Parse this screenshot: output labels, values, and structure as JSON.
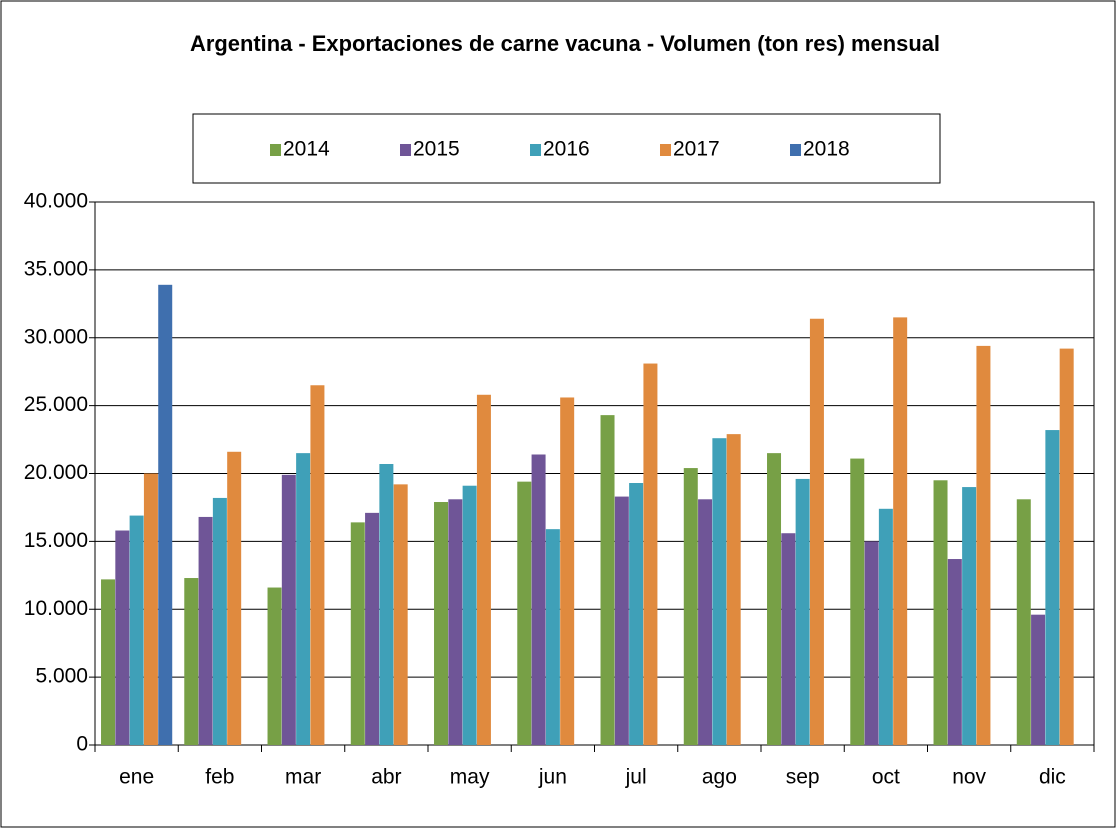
{
  "chart_data": {
    "type": "bar",
    "title": "Argentina - Exportaciones de carne vacuna - Volumen (ton res) mensual",
    "categories": [
      "ene",
      "feb",
      "mar",
      "abr",
      "may",
      "jun",
      "jul",
      "ago",
      "sep",
      "oct",
      "nov",
      "dic"
    ],
    "series": [
      {
        "name": "2014",
        "color": "#77a046",
        "values": [
          12200,
          12300,
          11600,
          16400,
          17900,
          19400,
          24300,
          20400,
          21500,
          21100,
          19500,
          18100
        ]
      },
      {
        "name": "2015",
        "color": "#6f5597",
        "values": [
          15800,
          16800,
          19900,
          17100,
          18100,
          21400,
          18300,
          18100,
          15600,
          15000,
          13700,
          9600
        ]
      },
      {
        "name": "2016",
        "color": "#3fa0b8",
        "values": [
          16900,
          18200,
          21500,
          20700,
          19100,
          15900,
          19300,
          22600,
          19600,
          17400,
          19000,
          23200
        ]
      },
      {
        "name": "2017",
        "color": "#e08a3e",
        "values": [
          20000,
          21600,
          26500,
          19200,
          25800,
          25600,
          28100,
          22900,
          31400,
          31500,
          29400,
          29200
        ]
      },
      {
        "name": "2018",
        "color": "#3f6fae",
        "values": [
          33900,
          null,
          null,
          null,
          null,
          null,
          null,
          null,
          null,
          null,
          null,
          null
        ]
      }
    ],
    "ylim": [
      0,
      40000
    ],
    "yticks": [
      0,
      {
        "value": 5000,
        "label": "5.000"
      },
      {
        "value": 10000,
        "label": "10.000"
      },
      {
        "value": 15000,
        "label": "15.000"
      },
      {
        "value": 20000,
        "label": "20.000"
      },
      {
        "value": 25000,
        "label": "25.000"
      },
      {
        "value": 30000,
        "label": "30.000"
      },
      {
        "value": 35000,
        "label": "35.000"
      },
      {
        "value": 40000,
        "label": "40.000"
      }
    ],
    "grid": true
  }
}
